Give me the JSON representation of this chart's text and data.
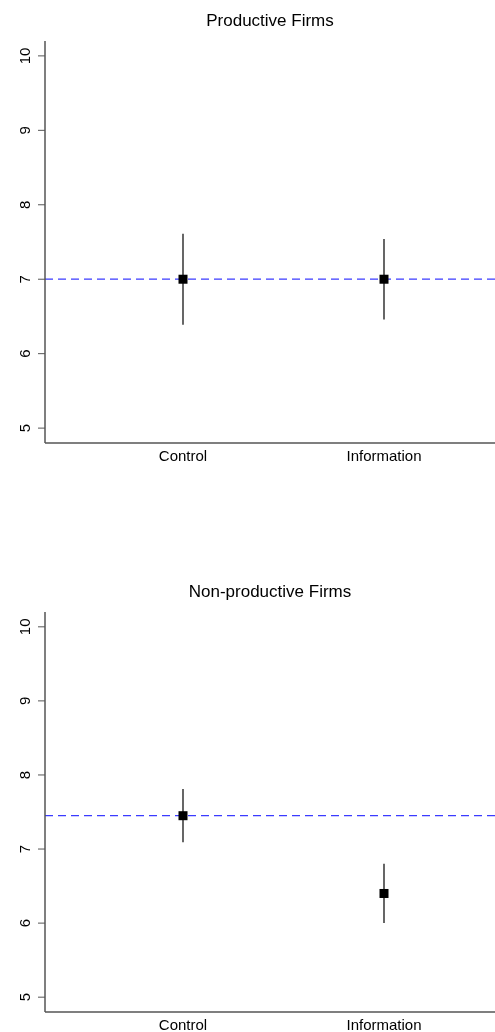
{
  "chart_data": [
    {
      "type": "scatter",
      "title": "Productive Firms",
      "categories": [
        "Control",
        "Information"
      ],
      "values": [
        7.0,
        7.0
      ],
      "errors": [
        [
          6.39,
          7.61
        ],
        [
          6.46,
          7.54
        ]
      ],
      "color": "#000000",
      "marker": "square",
      "ylim": [
        4.8,
        10.2
      ],
      "yticks": [
        5,
        6,
        7,
        8,
        9,
        10
      ],
      "ref_lines": [
        {
          "axis": "y",
          "value": 7.0,
          "color": "#3b3bff",
          "line_style": "dashed"
        }
      ]
    },
    {
      "type": "scatter",
      "title": "Non-productive Firms",
      "categories": [
        "Control",
        "Information"
      ],
      "values": [
        7.45,
        6.4
      ],
      "errors": [
        [
          7.09,
          7.81
        ],
        [
          6.0,
          6.8
        ]
      ],
      "color": "#000000",
      "marker": "square",
      "ylim": [
        4.8,
        10.2
      ],
      "yticks": [
        5,
        6,
        7,
        8,
        9,
        10
      ],
      "ref_lines": [
        {
          "axis": "y",
          "value": 7.45,
          "color": "#3b3bff",
          "line_style": "dashed"
        }
      ]
    }
  ]
}
